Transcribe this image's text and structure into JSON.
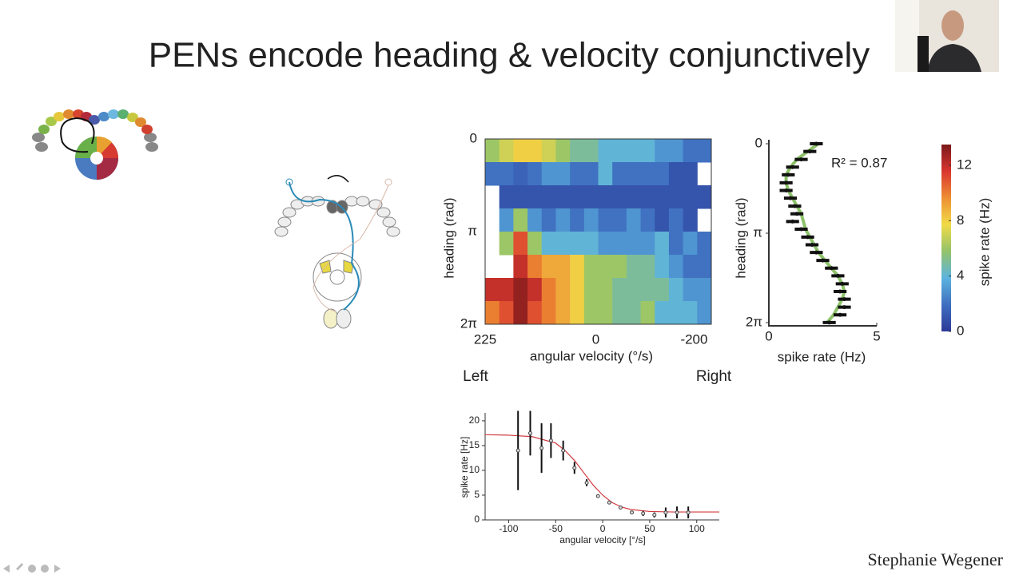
{
  "title": "PENs encode heading & velocity conjunctively",
  "author": "Stephanie Wegener",
  "chart_data": [
    {
      "type": "heatmap",
      "xlabel": "angular velocity (°/s)",
      "ylabel": "heading (rad)",
      "xlim": [
        225,
        -235
      ],
      "xticks": [
        225,
        0,
        -200
      ],
      "ylim": [
        6.2832,
        0
      ],
      "yticks": [
        0,
        {
          "value": 3.1416,
          "label": "π"
        },
        {
          "value": 6.2832,
          "label": "2π"
        }
      ],
      "z": [
        [
          6,
          7,
          8,
          8,
          7,
          6,
          5,
          5,
          4,
          4,
          4,
          4,
          3,
          3,
          2,
          2
        ],
        [
          2,
          2,
          1.5,
          2,
          3,
          3,
          2,
          2,
          4,
          2,
          2,
          2,
          2,
          1,
          1,
          null
        ],
        [
          null,
          1,
          1,
          1,
          1,
          1,
          1,
          1,
          1,
          1,
          1,
          1,
          1,
          1,
          1,
          1
        ],
        [
          null,
          3,
          6,
          3,
          2,
          3,
          2,
          3,
          2,
          2,
          3,
          2,
          1,
          2,
          1,
          null
        ],
        [
          null,
          6,
          11,
          6,
          4,
          4,
          4,
          4,
          3,
          3,
          3,
          3,
          4,
          2,
          3,
          2
        ],
        [
          null,
          null,
          12,
          10,
          9,
          9,
          8,
          6,
          6,
          6,
          5,
          5,
          4,
          3,
          2,
          2
        ],
        [
          12,
          12,
          13,
          12,
          10,
          9,
          8,
          6,
          6,
          5,
          5,
          5,
          5,
          4,
          3,
          3
        ],
        [
          10,
          11,
          13,
          11,
          10,
          9,
          8,
          6,
          6,
          5,
          5,
          6,
          4,
          4,
          4,
          3
        ]
      ],
      "colormap": [
        "#2b3a97",
        "#3f6fc0",
        "#5cb3df",
        "#93c36a",
        "#f0da48",
        "#ee8f33",
        "#d9362f",
        "#7a1a1a"
      ],
      "colorbar": {
        "label": "spike rate (Hz)",
        "zlim": [
          0,
          13.5
        ],
        "ticks": [
          0,
          4,
          8,
          12
        ]
      },
      "annotations": [
        {
          "text": "Left",
          "color": "#c8424a"
        },
        {
          "text": "Right",
          "color": "#5b9bd5"
        }
      ]
    },
    {
      "type": "scatter",
      "orientation": "horizontal",
      "xlabel": "spike rate (Hz)",
      "ylabel": "heading (rad)",
      "annotation": "R² = 0.87",
      "xlim": [
        0,
        5
      ],
      "xticks": [
        0,
        5
      ],
      "ylim": [
        6.2832,
        0
      ],
      "yticks": [
        0,
        {
          "value": 3.1416,
          "label": "π"
        },
        {
          "value": 6.2832,
          "label": "2π"
        }
      ],
      "y": [
        0,
        0.27,
        0.55,
        0.82,
        1.09,
        1.37,
        1.64,
        1.91,
        2.19,
        2.46,
        2.73,
        3.0,
        3.28,
        3.55,
        3.82,
        4.1,
        4.37,
        4.64,
        4.92,
        5.19,
        5.46,
        5.74,
        6.01,
        6.28
      ],
      "series": [
        {
          "color": "#111111",
          "values": [
            2.2,
            1.9,
            1.5,
            1.1,
            0.9,
            0.8,
            0.8,
            1.0,
            1.2,
            1.3,
            1.1,
            1.5,
            1.8,
            2.0,
            2.2,
            2.5,
            2.9,
            3.2,
            3.4,
            3.3,
            3.5,
            3.5,
            3.3,
            2.8
          ],
          "errors": [
            0.3,
            0.3,
            0.3,
            0.3,
            0.3,
            0.3,
            0.3,
            0.3,
            0.3,
            0.3,
            0.3,
            0.3,
            0.3,
            0.3,
            0.3,
            0.3,
            0.3,
            0.3,
            0.3,
            0.3,
            0.3,
            0.3,
            0.3,
            0.3
          ]
        }
      ],
      "fit": {
        "color": "#8dc26a",
        "values": [
          2.3,
          1.8,
          1.3,
          1.0,
          0.8,
          0.8,
          0.9,
          1.1,
          1.3,
          1.5,
          1.6,
          1.7,
          1.9,
          2.1,
          2.3,
          2.6,
          2.9,
          3.2,
          3.4,
          3.5,
          3.4,
          3.2,
          3.0,
          2.7
        ]
      }
    },
    {
      "type": "scatter",
      "xlabel": "angular velocity [°/s]",
      "ylabel": "spike rate [Hz]",
      "xlim": [
        -125,
        124
      ],
      "xticks": [
        -100,
        -50,
        0,
        50,
        100
      ],
      "ylim": [
        0,
        21.6
      ],
      "yticks": [
        0,
        5,
        10,
        15,
        20
      ],
      "x": [
        -90,
        -77,
        -65,
        -55,
        -42,
        -30,
        -17,
        -5,
        7,
        19,
        31,
        43,
        55,
        67,
        79,
        91
      ],
      "series": [
        {
          "color": "#111111",
          "values": [
            14,
            17.5,
            14.5,
            16,
            14,
            10.5,
            7.5,
            4.8,
            3.5,
            2.5,
            1.5,
            1.3,
            1,
            1.5,
            1.5,
            1.5
          ],
          "errors": [
            8,
            4.5,
            5,
            3.5,
            2,
            1.2,
            0.7,
            0.3,
            0.3,
            0.3,
            0.3,
            0.5,
            0.5,
            1,
            1.2,
            1.2
          ]
        }
      ],
      "fit": {
        "color": "#d0393e",
        "x": [
          -125,
          -100,
          -75,
          -50,
          -40,
          -30,
          -20,
          -10,
          0,
          10,
          20,
          30,
          50,
          75,
          100,
          124
        ],
        "values": [
          17.2,
          17.1,
          16.8,
          15.5,
          14,
          12,
          9.5,
          7,
          5,
          3.5,
          2.6,
          2.1,
          1.7,
          1.6,
          1.6,
          1.6
        ]
      }
    }
  ]
}
